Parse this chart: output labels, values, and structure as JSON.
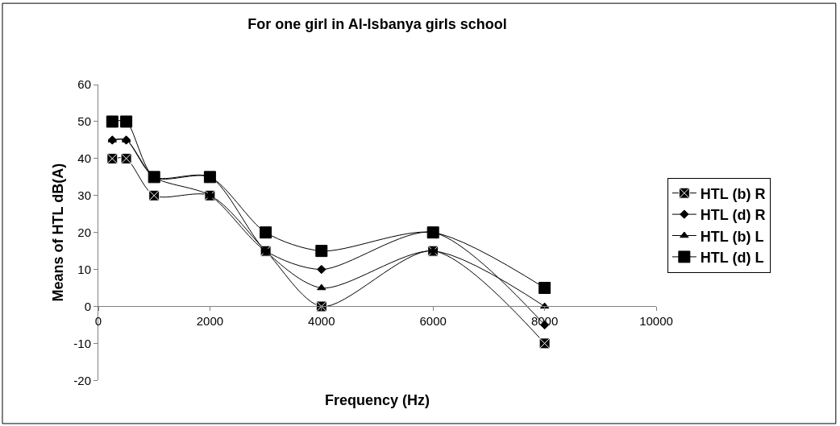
{
  "chart_data": {
    "type": "line",
    "title": "For one girl in Al-Isbanya girls school",
    "xlabel": "Frequency (Hz)",
    "ylabel": "Means of HTL dB(A)",
    "x": [
      250,
      500,
      1000,
      2000,
      3000,
      4000,
      6000,
      8000
    ],
    "series": [
      {
        "name": "HTL (b) R",
        "color": "#000000",
        "marker": "cross",
        "values": [
          40,
          40,
          30,
          30,
          15,
          0,
          15,
          -10
        ]
      },
      {
        "name": "HTL (d) R",
        "color": "#000000",
        "marker": "diamond",
        "values": [
          45,
          45,
          35,
          30,
          15,
          10,
          20,
          -5
        ]
      },
      {
        "name": "HTL (b) L",
        "color": "#000000",
        "marker": "triangle",
        "values": [
          45,
          45,
          35,
          35,
          15,
          5,
          15,
          0
        ]
      },
      {
        "name": "HTL (d) L",
        "color": "#000000",
        "marker": "square",
        "values": [
          50,
          50,
          35,
          35,
          20,
          15,
          20,
          5
        ]
      }
    ],
    "xlim": [
      0,
      10000
    ],
    "xticks": [
      0,
      2000,
      4000,
      6000,
      8000,
      10000
    ],
    "ylim": [
      -20,
      60
    ],
    "yticks": [
      -20,
      -10,
      0,
      10,
      20,
      30,
      40,
      50,
      60
    ],
    "legend": "right",
    "line_style": "solid"
  }
}
